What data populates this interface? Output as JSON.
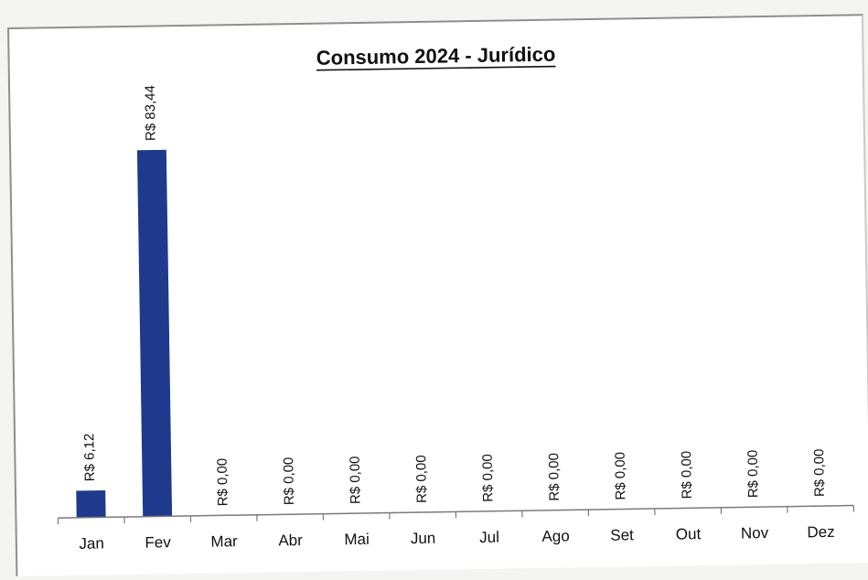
{
  "chart_data": {
    "type": "bar",
    "title": "Consumo 2024 - Jurídico",
    "categories": [
      "Jan",
      "Fev",
      "Mar",
      "Abr",
      "Mai",
      "Jun",
      "Jul",
      "Ago",
      "Set",
      "Out",
      "Nov",
      "Dez"
    ],
    "values": [
      6.12,
      83.44,
      0,
      0,
      0,
      0,
      0,
      0,
      0,
      0,
      0,
      0
    ],
    "data_labels": [
      "R$ 6,12",
      "R$ 83,44",
      "R$ 0,00",
      "R$ 0,00",
      "R$ 0,00",
      "R$ 0,00",
      "R$ 0,00",
      "R$ 0,00",
      "R$ 0,00",
      "R$ 0,00",
      "R$ 0,00",
      "R$ 0,00"
    ],
    "xlabel": "",
    "ylabel": "",
    "ylim": [
      0,
      100
    ],
    "grid": false,
    "legend": "none",
    "bar_color": "#1f3a8c"
  }
}
